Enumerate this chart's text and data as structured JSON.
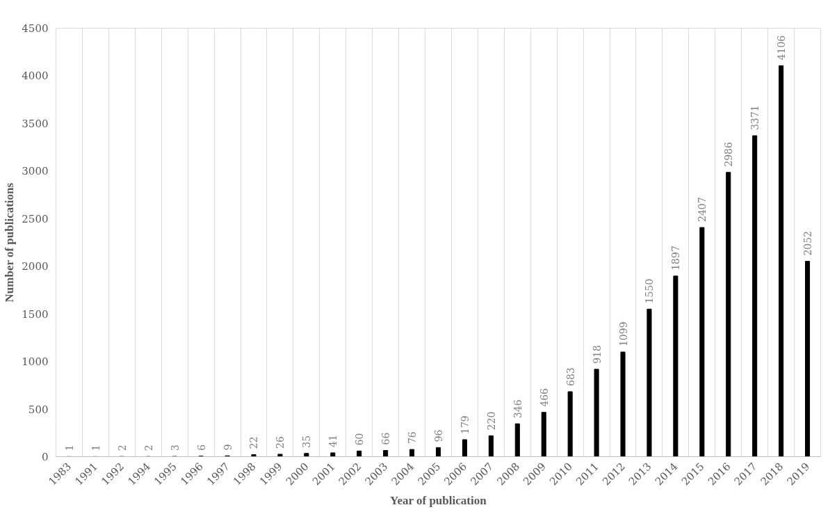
{
  "chart_data": {
    "type": "bar",
    "xlabel": "Year of publication",
    "ylabel": "Number of publications",
    "categories": [
      "1983",
      "1991",
      "1992",
      "1994",
      "1995",
      "1996",
      "1997",
      "1998",
      "1999",
      "2000",
      "2001",
      "2002",
      "2003",
      "2004",
      "2005",
      "2006",
      "2007",
      "2008",
      "2009",
      "2010",
      "2011",
      "2012",
      "2013",
      "2014",
      "2015",
      "2016",
      "2017",
      "2018",
      "2019"
    ],
    "values": [
      1,
      1,
      2,
      2,
      3,
      6,
      9,
      22,
      26,
      35,
      41,
      60,
      66,
      76,
      96,
      179,
      220,
      346,
      466,
      683,
      918,
      1099,
      1550,
      1897,
      2407,
      2986,
      3371,
      4106,
      2052
    ],
    "color": "#000000",
    "ylim": [
      0,
      4500
    ],
    "yticks": [
      0,
      500,
      1000,
      1500,
      2000,
      2500,
      3000,
      3500,
      4000,
      4500
    ],
    "grid": "x",
    "data_labels": true
  }
}
